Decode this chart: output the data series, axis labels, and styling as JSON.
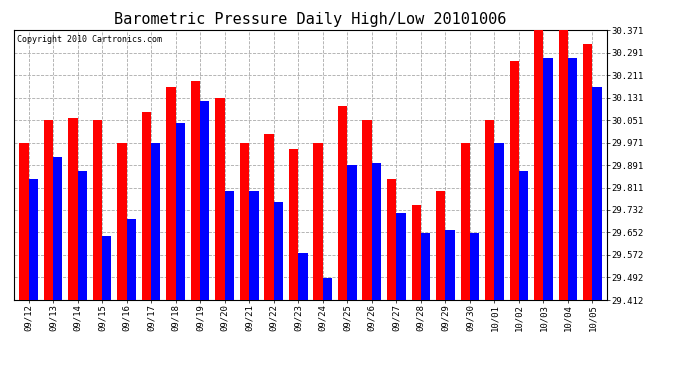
{
  "title": "Barometric Pressure Daily High/Low 20101006",
  "copyright": "Copyright 2010 Cartronics.com",
  "dates": [
    "09/12",
    "09/13",
    "09/14",
    "09/15",
    "09/16",
    "09/17",
    "09/18",
    "09/19",
    "09/20",
    "09/21",
    "09/22",
    "09/23",
    "09/24",
    "09/25",
    "09/26",
    "09/27",
    "09/28",
    "09/29",
    "09/30",
    "10/01",
    "10/02",
    "10/03",
    "10/04",
    "10/05"
  ],
  "highs": [
    29.97,
    30.05,
    30.06,
    30.05,
    29.97,
    30.08,
    30.17,
    30.19,
    30.13,
    29.97,
    30.0,
    29.95,
    29.97,
    30.1,
    30.05,
    29.84,
    29.75,
    29.8,
    29.97,
    30.05,
    30.26,
    30.38,
    30.39,
    30.32
  ],
  "lows": [
    29.84,
    29.92,
    29.87,
    29.64,
    29.7,
    29.97,
    30.04,
    30.12,
    29.8,
    29.8,
    29.76,
    29.58,
    29.49,
    29.89,
    29.9,
    29.72,
    29.65,
    29.66,
    29.65,
    29.97,
    29.87,
    30.27,
    30.27,
    30.17
  ],
  "ylim_min": 29.412,
  "ylim_max": 30.371,
  "yticks": [
    29.412,
    29.492,
    29.572,
    29.652,
    29.732,
    29.811,
    29.891,
    29.971,
    30.051,
    30.131,
    30.211,
    30.291,
    30.371
  ],
  "ytick_labels": [
    "29.412",
    "29.492",
    "29.572",
    "29.652",
    "29.732",
    "29.811",
    "29.891",
    "29.971",
    "30.051",
    "30.131",
    "30.211",
    "30.291",
    "30.371"
  ],
  "high_color": "#ff0000",
  "low_color": "#0000ff",
  "bg_color": "#ffffff",
  "grid_color": "#aaaaaa",
  "title_fontsize": 11,
  "copyright_fontsize": 6,
  "tick_fontsize": 6.5,
  "bar_width": 0.38
}
